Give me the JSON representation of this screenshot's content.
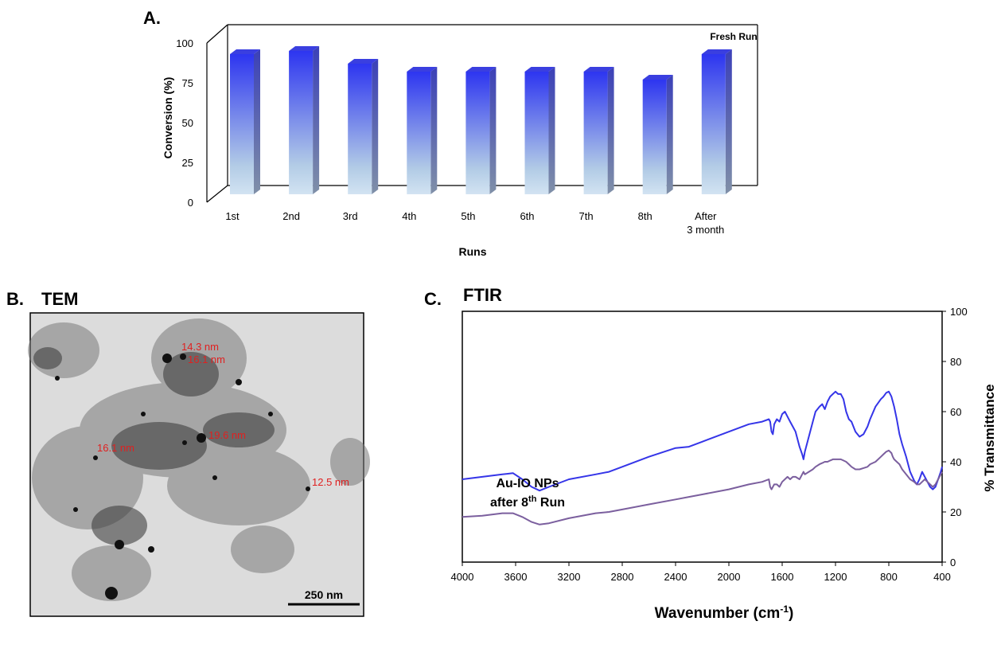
{
  "panel_a": {
    "label": "A."
  },
  "panel_b": {
    "label": "B.",
    "title": "TEM",
    "measurements": [
      "14.3 nm",
      "16.1 nm",
      "19.6 nm",
      "16.1 nm",
      "12.5 nm"
    ],
    "scale_bar": "250  nm"
  },
  "panel_c": {
    "label": "C.",
    "title": "FTIR"
  },
  "chart_data": [
    {
      "type": "bar",
      "categories": [
        "1st",
        "2nd",
        "3rd",
        "4th",
        "5th",
        "6th",
        "7th",
        "8th",
        "After 3 month"
      ],
      "values": [
        93,
        95,
        87,
        82,
        82,
        82,
        82,
        77,
        93
      ],
      "xlabel": "Runs",
      "ylabel": "Conversion (%)",
      "ylim": [
        0,
        100
      ],
      "yticks": [
        "0",
        "25",
        "50",
        "75",
        "100"
      ],
      "annotations": [
        "Fresh Run"
      ],
      "colors": {
        "bar_top": "#2d35f0",
        "bar_bottom": "#c9def0",
        "bar_side": "#6f7f9a"
      }
    },
    {
      "type": "line",
      "xlabel": "Wavenumber (cm-1)",
      "xlabel_main": "Wavenumber (cm",
      "xlabel_sup": "-1",
      "xlabel_close": ")",
      "ylabel": "% Transmittance",
      "xlim": [
        4000,
        400
      ],
      "ylim": [
        0,
        100
      ],
      "xticks": [
        "4000",
        "3600",
        "3200",
        "2800",
        "2400",
        "2000",
        "1600",
        "1200",
        "800",
        "400"
      ],
      "yticks": [
        "0",
        "20",
        "40",
        "60",
        "80",
        "100"
      ],
      "annotation": {
        "line1": "Au-IO NPs",
        "line2_pre": "after 8",
        "line2_sup": "th",
        "line2_post": " Run"
      },
      "series": [
        {
          "color": "#3535e8",
          "x": [
            4000,
            3850,
            3700,
            3620,
            3550,
            3480,
            3420,
            3350,
            3200,
            3000,
            2900,
            2800,
            2600,
            2400,
            2300,
            2200,
            2000,
            1850,
            1750,
            1700,
            1690,
            1680,
            1670,
            1660,
            1640,
            1620,
            1600,
            1580,
            1560,
            1540,
            1520,
            1500,
            1470,
            1450,
            1440,
            1430,
            1400,
            1370,
            1350,
            1320,
            1300,
            1280,
            1260,
            1240,
            1220,
            1200,
            1180,
            1160,
            1140,
            1120,
            1100,
            1080,
            1050,
            1020,
            990,
            960,
            940,
            900,
            860,
            840,
            820,
            800,
            790,
            780,
            770,
            760,
            740,
            720,
            700,
            670,
            640,
            610,
            590,
            570,
            550,
            530,
            510,
            490,
            470,
            450,
            430,
            410,
            400
          ],
          "y": [
            33,
            34,
            35,
            35.5,
            33,
            30,
            28.5,
            30,
            33,
            35,
            36,
            38,
            42,
            45.5,
            46,
            48,
            52,
            55,
            56,
            57,
            56,
            52,
            51,
            55,
            57,
            56,
            59,
            60,
            58,
            56,
            54,
            52,
            46,
            43,
            41,
            44,
            50,
            56,
            60,
            62,
            63,
            61,
            64,
            66,
            67,
            68,
            67,
            67,
            65,
            60,
            57,
            56,
            52,
            50,
            51,
            54,
            57,
            62,
            65,
            66,
            67.5,
            68,
            67,
            66,
            64,
            62,
            57,
            51,
            47,
            42,
            36,
            32.5,
            31,
            33,
            36,
            34,
            32,
            30,
            29,
            30,
            33,
            36,
            38
          ]
        },
        {
          "color": "#7b5f9e",
          "x": [
            4000,
            3850,
            3700,
            3620,
            3550,
            3480,
            3420,
            3350,
            3200,
            3000,
            2900,
            2800,
            2600,
            2400,
            2300,
            2200,
            2000,
            1850,
            1750,
            1700,
            1690,
            1680,
            1670,
            1660,
            1640,
            1620,
            1600,
            1580,
            1560,
            1540,
            1520,
            1500,
            1470,
            1450,
            1440,
            1430,
            1400,
            1370,
            1350,
            1320,
            1300,
            1280,
            1260,
            1240,
            1220,
            1200,
            1180,
            1160,
            1140,
            1120,
            1100,
            1080,
            1050,
            1020,
            990,
            960,
            940,
            900,
            860,
            840,
            820,
            800,
            790,
            780,
            770,
            760,
            740,
            720,
            700,
            670,
            640,
            610,
            590,
            570,
            550,
            530,
            510,
            490,
            470,
            450,
            430,
            410,
            400
          ],
          "y": [
            18,
            18.5,
            19.5,
            19.5,
            18,
            16,
            15,
            15.5,
            17.5,
            19.5,
            20,
            21,
            23,
            25,
            26,
            27,
            29,
            31,
            32,
            33,
            30,
            29,
            30,
            31,
            31,
            30,
            32,
            33,
            34,
            33,
            34,
            34,
            33,
            35,
            36,
            35,
            36,
            37,
            38,
            39,
            39.5,
            40,
            40,
            40.5,
            41,
            41,
            41,
            41,
            40.5,
            40,
            39,
            38,
            37,
            37,
            37.5,
            38,
            39,
            40,
            42,
            43,
            44,
            44.5,
            44,
            43.5,
            42,
            41,
            40,
            39,
            37,
            35,
            33,
            32,
            31,
            31,
            32,
            33,
            32,
            31,
            30,
            31,
            33,
            35,
            36
          ]
        }
      ]
    }
  ]
}
